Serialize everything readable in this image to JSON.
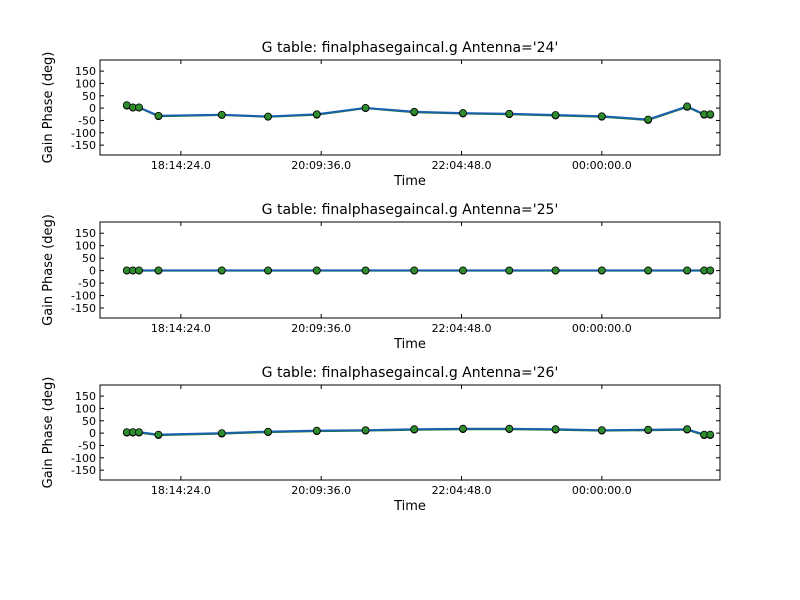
{
  "chart_data": [
    {
      "type": "line",
      "title": "G table: finalphasegaincal.g      Antenna='24'",
      "xlabel": "Time",
      "ylabel": "Gain Phase (deg)",
      "ylim": [
        -190,
        195
      ],
      "yticks": [
        150,
        100,
        50,
        0,
        -50,
        -100,
        -150
      ],
      "xlim": [
        "17:08:00",
        "01:37:00"
      ],
      "xticks": [
        {
          "t": "18:14:24",
          "label": "18:14:24.0"
        },
        {
          "t": "20:09:36",
          "label": "20:09:36.0"
        },
        {
          "t": "22:04:48",
          "label": "22:04:48.0"
        },
        {
          "t": "24:00:00",
          "label": "00:00:00.0"
        }
      ],
      "grid": false,
      "series": [
        {
          "color": "#1f7a1f",
          "marker_color": "#2e8b2e",
          "x": [
            "17:30",
            "17:35",
            "17:40",
            "17:56",
            "18:48",
            "19:26",
            "20:06",
            "20:46",
            "21:26",
            "22:06",
            "22:44",
            "23:22",
            "24:00",
            "24:38",
            "25:10",
            "25:24",
            "25:29"
          ],
          "y": [
            10,
            2,
            2,
            -33,
            -28,
            -35,
            -27,
            0,
            -17,
            -22,
            -25,
            -30,
            -35,
            -48,
            5,
            -27,
            -27
          ]
        },
        {
          "color": "#1a5fb0",
          "marker_color": "#2e8b2e",
          "x": [
            "17:30",
            "17:35",
            "17:40",
            "17:56",
            "18:48",
            "19:26",
            "20:06",
            "20:46",
            "21:26",
            "22:06",
            "22:44",
            "23:22",
            "24:00",
            "24:38",
            "25:10",
            "25:24",
            "25:29"
          ],
          "y": [
            12,
            3,
            3,
            -31,
            -27,
            -34,
            -25,
            1,
            -15,
            -20,
            -23,
            -28,
            -33,
            -46,
            7,
            -25,
            -25
          ]
        }
      ]
    },
    {
      "type": "line",
      "title": "G table: finalphasegaincal.g      Antenna='25'",
      "xlabel": "Time",
      "ylabel": "Gain Phase (deg)",
      "ylim": [
        -190,
        195
      ],
      "yticks": [
        150,
        100,
        50,
        0,
        -50,
        -100,
        -150
      ],
      "xlim": [
        "17:08:00",
        "01:37:00"
      ],
      "xticks": [
        {
          "t": "18:14:24",
          "label": "18:14:24.0"
        },
        {
          "t": "20:09:36",
          "label": "20:09:36.0"
        },
        {
          "t": "22:04:48",
          "label": "22:04:48.0"
        },
        {
          "t": "24:00:00",
          "label": "00:00:00.0"
        }
      ],
      "grid": false,
      "series": [
        {
          "color": "#1f7a1f",
          "marker_color": "#2e8b2e",
          "x": [
            "17:30",
            "17:35",
            "17:40",
            "17:56",
            "18:48",
            "19:26",
            "20:06",
            "20:46",
            "21:26",
            "22:06",
            "22:44",
            "23:22",
            "24:00",
            "24:38",
            "25:10",
            "25:24",
            "25:29"
          ],
          "y": [
            0,
            0,
            0,
            0,
            0,
            0,
            0,
            0,
            0,
            0,
            0,
            0,
            0,
            0,
            0,
            0,
            0
          ]
        },
        {
          "color": "#1a5fb0",
          "marker_color": "#2e8b2e",
          "x": [
            "17:30",
            "17:35",
            "17:40",
            "17:56",
            "18:48",
            "19:26",
            "20:06",
            "20:46",
            "21:26",
            "22:06",
            "22:44",
            "23:22",
            "24:00",
            "24:38",
            "25:10",
            "25:24",
            "25:29"
          ],
          "y": [
            1,
            1,
            1,
            1,
            1,
            1,
            1,
            1,
            1,
            1,
            1,
            1,
            1,
            1,
            1,
            1,
            1
          ]
        }
      ]
    },
    {
      "type": "line",
      "title": "G table: finalphasegaincal.g      Antenna='26'",
      "xlabel": "Time",
      "ylabel": "Gain Phase (deg)",
      "ylim": [
        -190,
        195
      ],
      "yticks": [
        150,
        100,
        50,
        0,
        -50,
        -100,
        -150
      ],
      "xlim": [
        "17:08:00",
        "01:37:00"
      ],
      "xticks": [
        {
          "t": "18:14:24",
          "label": "18:14:24.0"
        },
        {
          "t": "20:09:36",
          "label": "20:09:36.0"
        },
        {
          "t": "22:04:48",
          "label": "22:04:48.0"
        },
        {
          "t": "24:00:00",
          "label": "00:00:00.0"
        }
      ],
      "grid": false,
      "series": [
        {
          "color": "#1f7a1f",
          "marker_color": "#2e8b2e",
          "x": [
            "17:30",
            "17:35",
            "17:40",
            "17:56",
            "18:48",
            "19:26",
            "20:06",
            "20:46",
            "21:26",
            "22:06",
            "22:44",
            "23:22",
            "24:00",
            "24:38",
            "25:10",
            "25:24",
            "25:29"
          ],
          "y": [
            2,
            2,
            2,
            -8,
            -2,
            4,
            8,
            10,
            14,
            16,
            16,
            14,
            10,
            12,
            14,
            -8,
            -8
          ]
        },
        {
          "color": "#1a5fb0",
          "marker_color": "#2e8b2e",
          "x": [
            "17:30",
            "17:35",
            "17:40",
            "17:56",
            "18:48",
            "19:26",
            "20:06",
            "20:46",
            "21:26",
            "22:06",
            "22:44",
            "23:22",
            "24:00",
            "24:38",
            "25:10",
            "25:24",
            "25:29"
          ],
          "y": [
            4,
            4,
            4,
            -6,
            0,
            6,
            10,
            12,
            16,
            18,
            18,
            16,
            12,
            14,
            16,
            -6,
            -6
          ]
        }
      ]
    }
  ]
}
